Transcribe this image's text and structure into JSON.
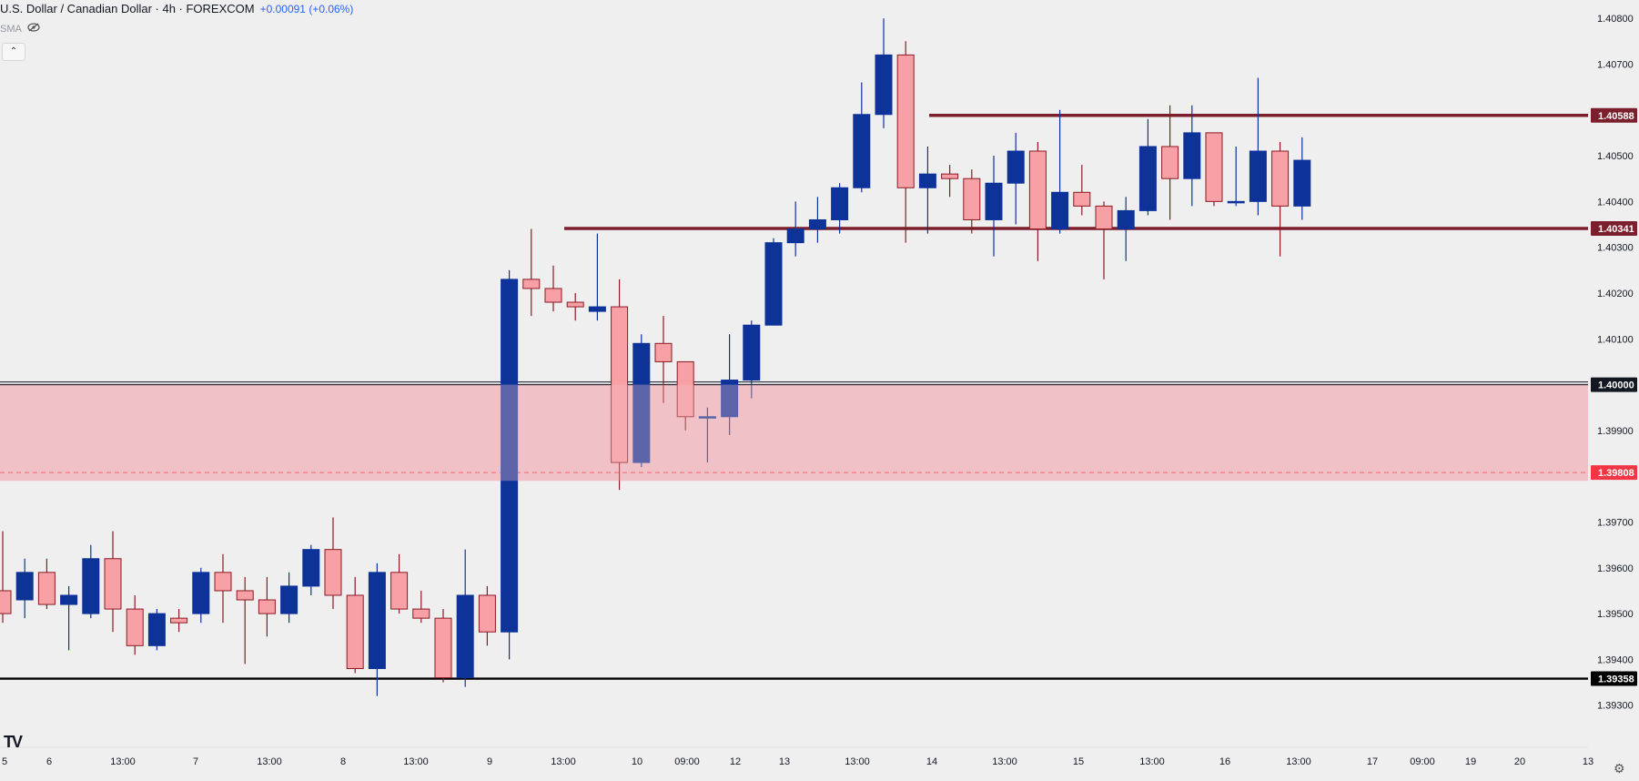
{
  "header": {
    "title": "U.S. Dollar / Canadian Dollar · 4h · FOREXCOM",
    "change": "+0.00091 (+0.06%)",
    "indicator": "SMA"
  },
  "icons": {
    "visibility": "eye-off-icon",
    "collapse": "chevron-up-icon",
    "logo": "tv-logo-icon",
    "settings": "gear-icon"
  },
  "logo_text": "TV",
  "chart_data": {
    "type": "candlestick",
    "y_range": [
      1.3921,
      1.4084
    ],
    "y_ticks": [
      "1.40800",
      "1.40700",
      "1.40500",
      "1.40400",
      "1.40300",
      "1.40200",
      "1.40100",
      "1.39900",
      "1.39700",
      "1.39600",
      "1.39500",
      "1.39400",
      "1.39300"
    ],
    "x_labels": [
      "5",
      "6",
      "13:00",
      "7",
      "13:00",
      "8",
      "13:00",
      "9",
      "13:00",
      "10",
      "09:00",
      "12",
      "13",
      "13:00",
      "14",
      "13:00",
      "15",
      "13:00",
      "16",
      "13:00",
      "17",
      "09:00",
      "19",
      "20",
      "13"
    ],
    "candles": [
      [
        1.3955,
        1.3968,
        1.3948,
        1.395
      ],
      [
        1.3953,
        1.3962,
        1.3949,
        1.3959
      ],
      [
        1.3959,
        1.3962,
        1.3951,
        1.3952
      ],
      [
        1.3952,
        1.3956,
        1.3942,
        1.3954
      ],
      [
        1.395,
        1.3965,
        1.3949,
        1.3962
      ],
      [
        1.3962,
        1.3968,
        1.3946,
        1.3951
      ],
      [
        1.3951,
        1.3954,
        1.3941,
        1.3943
      ],
      [
        1.3943,
        1.3951,
        1.3942,
        1.395
      ],
      [
        1.3949,
        1.3951,
        1.3946,
        1.3948
      ],
      [
        1.395,
        1.396,
        1.3948,
        1.3959
      ],
      [
        1.3959,
        1.3963,
        1.3948,
        1.3955
      ],
      [
        1.3955,
        1.3958,
        1.3939,
        1.3953
      ],
      [
        1.3953,
        1.3958,
        1.3945,
        1.395
      ],
      [
        1.395,
        1.3959,
        1.3948,
        1.3956
      ],
      [
        1.3956,
        1.3965,
        1.3954,
        1.3964
      ],
      [
        1.3964,
        1.3971,
        1.3951,
        1.3954
      ],
      [
        1.3954,
        1.3958,
        1.3937,
        1.3938
      ],
      [
        1.3938,
        1.3961,
        1.3932,
        1.3959
      ],
      [
        1.3959,
        1.3963,
        1.395,
        1.3951
      ],
      [
        1.3951,
        1.3955,
        1.3948,
        1.3949
      ],
      [
        1.3949,
        1.3951,
        1.3935,
        1.3936
      ],
      [
        1.3936,
        1.3964,
        1.3934,
        1.3954
      ],
      [
        1.3954,
        1.3956,
        1.3943,
        1.3946
      ],
      [
        1.3946,
        1.4025,
        1.394,
        1.4023
      ],
      [
        1.4023,
        1.4034,
        1.4015,
        1.4021
      ],
      [
        1.4021,
        1.4026,
        1.4016,
        1.4018
      ],
      [
        1.4018,
        1.402,
        1.4014,
        1.4017
      ],
      [
        1.4016,
        1.4033,
        1.4014,
        1.4017
      ],
      [
        1.4017,
        1.4023,
        1.3977,
        1.3983
      ],
      [
        1.3983,
        1.4011,
        1.3982,
        1.4009
      ],
      [
        1.4009,
        1.4015,
        1.3996,
        1.4005
      ],
      [
        1.4005,
        1.4005,
        1.399,
        1.3993
      ],
      [
        1.3993,
        1.3995,
        1.3983,
        1.3993
      ],
      [
        1.3993,
        1.4011,
        1.3989,
        1.4001
      ],
      [
        1.4001,
        1.4014,
        1.3997,
        1.4013
      ],
      [
        1.4013,
        1.4032,
        1.4013,
        1.4031
      ],
      [
        1.4031,
        1.404,
        1.4028,
        1.4034
      ],
      [
        1.4034,
        1.4041,
        1.4031,
        1.4036
      ],
      [
        1.4036,
        1.4044,
        1.4033,
        1.4043
      ],
      [
        1.4043,
        1.4066,
        1.4042,
        1.4059
      ],
      [
        1.4059,
        1.408,
        1.4056,
        1.4072
      ],
      [
        1.4072,
        1.4075,
        1.4031,
        1.4043
      ],
      [
        1.4043,
        1.4052,
        1.4033,
        1.4046
      ],
      [
        1.4046,
        1.4048,
        1.4041,
        1.4045
      ],
      [
        1.4045,
        1.4047,
        1.4033,
        1.4036
      ],
      [
        1.4036,
        1.405,
        1.4028,
        1.4044
      ],
      [
        1.4044,
        1.4055,
        1.4035,
        1.4051
      ],
      [
        1.4051,
        1.4053,
        1.4027,
        1.4034
      ],
      [
        1.4034,
        1.406,
        1.4033,
        1.4042
      ],
      [
        1.4042,
        1.4048,
        1.4037,
        1.4039
      ],
      [
        1.4039,
        1.404,
        1.4023,
        1.4034
      ],
      [
        1.4034,
        1.4041,
        1.4027,
        1.4038
      ],
      [
        1.4038,
        1.4058,
        1.4037,
        1.4052
      ],
      [
        1.4052,
        1.4061,
        1.4036,
        1.4045
      ],
      [
        1.4045,
        1.4061,
        1.4039,
        1.4055
      ],
      [
        1.4055,
        1.4055,
        1.4039,
        1.404
      ],
      [
        1.404,
        1.4052,
        1.4039,
        1.404
      ],
      [
        1.404,
        1.4067,
        1.4037,
        1.4051
      ],
      [
        1.4051,
        1.4053,
        1.4028,
        1.4039
      ],
      [
        1.4039,
        1.4054,
        1.4036,
        1.4049
      ]
    ],
    "levels": [
      {
        "value": 1.40588,
        "label": "1.40588",
        "color": "#7a1f2b"
      },
      {
        "value": 1.40341,
        "label": "1.40341",
        "color": "#7a1f2b"
      },
      {
        "value": 1.4,
        "label": "1.40000",
        "color": "#131722"
      },
      {
        "value": 1.39808,
        "label": "1.39808",
        "color": "#f23645"
      },
      {
        "value": 1.39358,
        "label": "1.39358",
        "color": "#000000"
      }
    ],
    "zone": [
      1.3979,
      1.4
    ],
    "colors": {
      "up": "#0d3399",
      "down": "#f7a1a6",
      "down_border": "#8b1a22",
      "zone": "#f2bcc4"
    }
  }
}
